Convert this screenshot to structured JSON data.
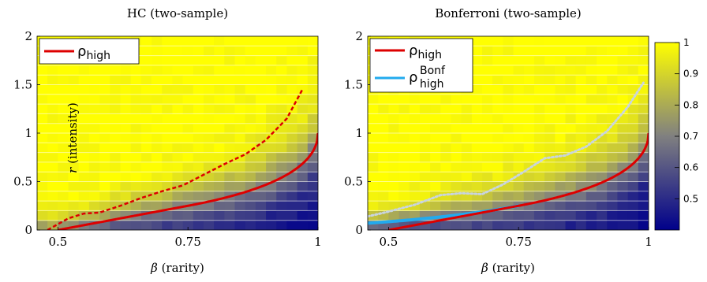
{
  "chart_data": [
    {
      "type": "heatmap",
      "title": "HC (two-sample)",
      "xlabel_var": "β",
      "xlabel_text": " (rarity)",
      "ylabel_var": "r",
      "ylabel_text": " (intensity)",
      "xlim": [
        0.46,
        1.0
      ],
      "ylim": [
        0,
        2
      ],
      "xticks": [
        "0.5",
        "0.75",
        "1"
      ],
      "xtick_values": [
        0.5,
        0.75,
        1.0
      ],
      "yticks": [
        "0",
        "0.5",
        "1",
        "1.5",
        "2"
      ],
      "ytick_values": [
        0,
        0.5,
        1,
        1.5,
        2
      ],
      "legend_position": "top-left",
      "legend": [
        {
          "symbol": "ρ",
          "sub": "high",
          "sup": "",
          "color": "#dd0000"
        }
      ],
      "boundary": {
        "formula": "rho_high",
        "color": "#dd0000"
      },
      "empirical_boundary": {
        "style": "dashed",
        "color": "#dd0000",
        "x": [
          0.48,
          0.5,
          0.52,
          0.55,
          0.58,
          0.62,
          0.66,
          0.7,
          0.74,
          0.78,
          0.82,
          0.86,
          0.9,
          0.94,
          0.97
        ],
        "y": [
          0.0,
          0.06,
          0.12,
          0.17,
          0.18,
          0.25,
          0.33,
          0.4,
          0.46,
          0.57,
          0.68,
          0.78,
          0.93,
          1.15,
          1.45
        ]
      },
      "grid": false
    },
    {
      "type": "heatmap",
      "title": "Bonferroni (two-sample)",
      "xlabel_var": "β",
      "xlabel_text": " (rarity)",
      "xlim": [
        0.46,
        1.0
      ],
      "ylim": [
        0,
        2
      ],
      "xticks": [
        "0.5",
        "0.75",
        "1"
      ],
      "xtick_values": [
        0.5,
        0.75,
        1.0
      ],
      "yticks": [
        "0",
        "0.5",
        "1",
        "1.5",
        "2"
      ],
      "ytick_values": [
        0,
        0.5,
        1,
        1.5,
        2
      ],
      "legend_position": "top-left",
      "legend": [
        {
          "symbol": "ρ",
          "sub": "high",
          "sup": "",
          "color": "#dd0000"
        },
        {
          "symbol": "ρ",
          "sub": "high",
          "sup": "Bonf",
          "color": "#22aaee"
        }
      ],
      "boundary": {
        "formula": "rho_high",
        "color": "#dd0000"
      },
      "bonf_boundary": {
        "formula": "rho_high_bonf",
        "color": "#22aaee",
        "x_max": 0.75
      },
      "empirical_boundary": {
        "style": "dotted",
        "color": "#c8d4e0",
        "x": [
          0.46,
          0.5,
          0.55,
          0.6,
          0.64,
          0.68,
          0.72,
          0.76,
          0.8,
          0.84,
          0.88,
          0.92,
          0.96,
          0.99
        ],
        "y": [
          0.14,
          0.19,
          0.26,
          0.36,
          0.38,
          0.37,
          0.47,
          0.6,
          0.74,
          0.77,
          0.86,
          1.02,
          1.27,
          1.52
        ]
      },
      "grid": false
    }
  ],
  "colorbar": {
    "min": 0.4,
    "max": 1.0,
    "ticks": [
      "0.5",
      "0.6",
      "0.7",
      "0.8",
      "0.9",
      "1"
    ],
    "tick_values": [
      0.5,
      0.6,
      0.7,
      0.8,
      0.9,
      1.0
    ],
    "colors": [
      "#00008b",
      "#808080",
      "#ffff00"
    ]
  }
}
